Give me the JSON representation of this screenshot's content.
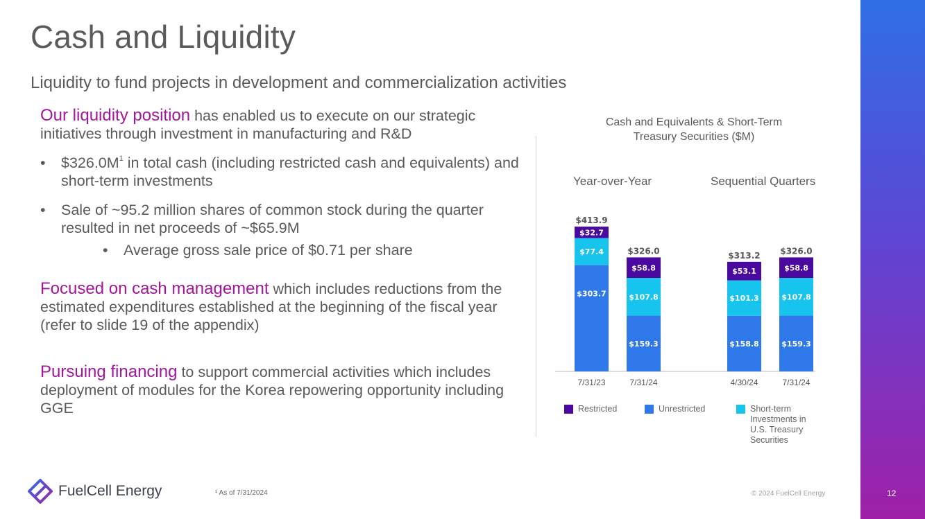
{
  "slide": {
    "title": "Cash and Liquidity",
    "subtitle": "Liquidity to fund projects in development and commercialization activities",
    "page_number": "12",
    "footnote": "¹ As of 7/31/2024",
    "copyright": "© 2024 FuelCell Energy",
    "logo_text": "FuelCell Energy"
  },
  "left": {
    "p1_highlight": "Our liquidity position",
    "p1_rest": " has enabled us to execute on our strategic initiatives through investment in manufacturing and R&D",
    "bullet1_value": "$326.0M",
    "bullet1_sup": "1",
    "bullet1_rest": " in total cash (including restricted cash and equivalents) and short-term investments",
    "bullet2": "Sale of ~95.2 million shares of common stock during the quarter resulted in net proceeds of ~$65.9M",
    "sub_bullet": "Average gross sale price of $0.71 per share",
    "p2_highlight": "Focused on cash management",
    "p2_rest": " which includes reductions from the estimated expenditures established at the beginning of the fiscal year (refer to slide 19 of the appendix)",
    "p3_highlight": "Pursuing financing",
    "p3_rest": " to support commercial activities which includes deployment of modules for the Korea repowering opportunity including GGE"
  },
  "colors": {
    "restricted": "#4a0aa0",
    "unrestricted": "#2f78ea",
    "short_term": "#17c4ee",
    "accent": "#a3169c"
  },
  "chart_data": {
    "type": "bar",
    "stacked": true,
    "title": "Cash and Equivalents & Short-Term Treasury Securities ($M)",
    "groups": [
      "Year-over-Year",
      "Sequential Quarters"
    ],
    "categories": [
      "7/31/23",
      "7/31/24",
      "4/30/24",
      "7/31/24"
    ],
    "category_group": [
      0,
      0,
      1,
      1
    ],
    "series": [
      {
        "name": "Unrestricted",
        "values": [
          303.7,
          159.3,
          158.8,
          159.3
        ],
        "labels": [
          "$303.7",
          "$159.3",
          "$158.8",
          "$159.3"
        ]
      },
      {
        "name": "Short-term Investments in U.S. Treasury Securities",
        "values": [
          77.4,
          107.8,
          101.3,
          107.8
        ],
        "labels": [
          "$77.4",
          "$107.8",
          "$101.3",
          "$107.8"
        ]
      },
      {
        "name": "Restricted",
        "values": [
          32.7,
          58.8,
          53.1,
          58.8
        ],
        "labels": [
          "$32.7",
          "$58.8",
          "$53.1",
          "$58.8"
        ]
      }
    ],
    "totals": [
      "$413.9",
      "$326.0",
      "$313.2",
      "$326.0"
    ],
    "legend": [
      "Restricted",
      "Unrestricted",
      "Short-term Investments in U.S. Treasury Securities"
    ],
    "ylim": [
      0,
      420
    ]
  }
}
